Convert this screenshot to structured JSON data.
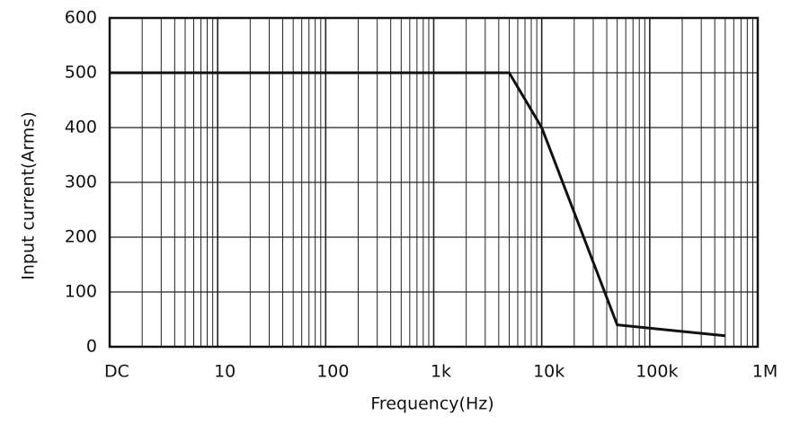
{
  "chart_data": {
    "type": "line",
    "x_label": "Frequency(Hz)",
    "y_label": "Input current(Arms)",
    "x": [
      1,
      5000,
      10000,
      50000,
      500000
    ],
    "values": [
      500,
      500,
      400,
      40,
      20
    ],
    "color": "#111111",
    "x_log": true,
    "xlim": [
      1,
      1000000
    ],
    "xticks": [
      {
        "value": 1,
        "label": "DC"
      },
      10,
      100,
      {
        "value": 1000,
        "label": "1k"
      },
      {
        "value": 10000,
        "label": "10k"
      },
      {
        "value": 100000,
        "label": "100k"
      },
      {
        "value": 1000000,
        "label": "1M"
      }
    ],
    "ylim": [
      0,
      600
    ],
    "yticks": [
      0,
      100,
      200,
      300,
      400,
      500,
      600
    ],
    "grid": true
  }
}
